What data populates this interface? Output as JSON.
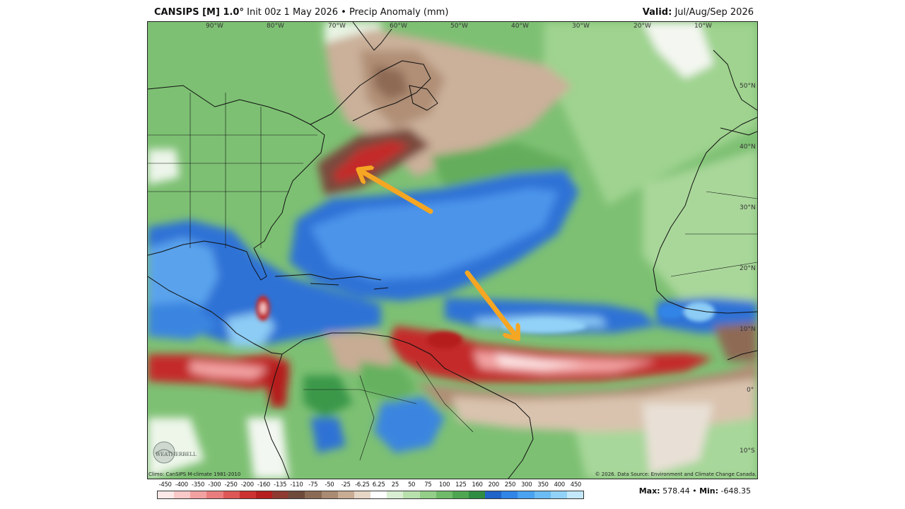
{
  "header": {
    "brand": "CANSIPS [M] 1.0°",
    "description": "Init 00z 1 May 2026 • Precip Anomaly (mm)",
    "valid_label": "Valid:",
    "valid_value": "Jul/Aug/Sep 2026"
  },
  "map": {
    "lon_labels": [
      "90°W",
      "80°W",
      "70°W",
      "60°W",
      "50°W",
      "40°W",
      "30°W",
      "20°W",
      "10°W"
    ],
    "lat_labels": [
      "50°N",
      "40°N",
      "30°N",
      "20°N",
      "10°N",
      "0°",
      "10°S"
    ],
    "annotation_color": "#f5a623",
    "annotation_arrows": [
      "arrow-to-northwest-dry-anomaly",
      "arrow-to-tropical-atlantic-dry-band"
    ]
  },
  "footer": {
    "climo": "Climo: CanSIPS M-climate 1981-2010",
    "source": "© 2026. Data Source: Environment and Climate Change Canada.",
    "logo_text": "WEATHERBELL"
  },
  "colorbar": {
    "labels": [
      "-450",
      "-400",
      "-350",
      "-300",
      "-250",
      "-200",
      "-160",
      "-135",
      "-110",
      "-75",
      "-50",
      "-25",
      "-6.25",
      "6.25",
      "25",
      "50",
      "75",
      "100",
      "125",
      "160",
      "200",
      "250",
      "300",
      "350",
      "400",
      "450"
    ],
    "colors": [
      "#fde8e8",
      "#f9c9c9",
      "#f2a1a1",
      "#e97d7d",
      "#de5757",
      "#cc3232",
      "#b51f1f",
      "#8e3a30",
      "#6e4a3a",
      "#8b6a55",
      "#a98a72",
      "#c8ac94",
      "#e6d6c6",
      "#ffffff",
      "#d9eed2",
      "#b8e0ad",
      "#93cf88",
      "#70bb69",
      "#4fa652",
      "#2f8d43",
      "#1f64c8",
      "#3085e6",
      "#4aa2f0",
      "#6bbcf4",
      "#93d2f8",
      "#c4e8fb"
    ]
  },
  "stats": {
    "max_label": "Max:",
    "max_value": "578.44",
    "separator": "•",
    "min_label": "Min:",
    "min_value": "-648.35"
  }
}
